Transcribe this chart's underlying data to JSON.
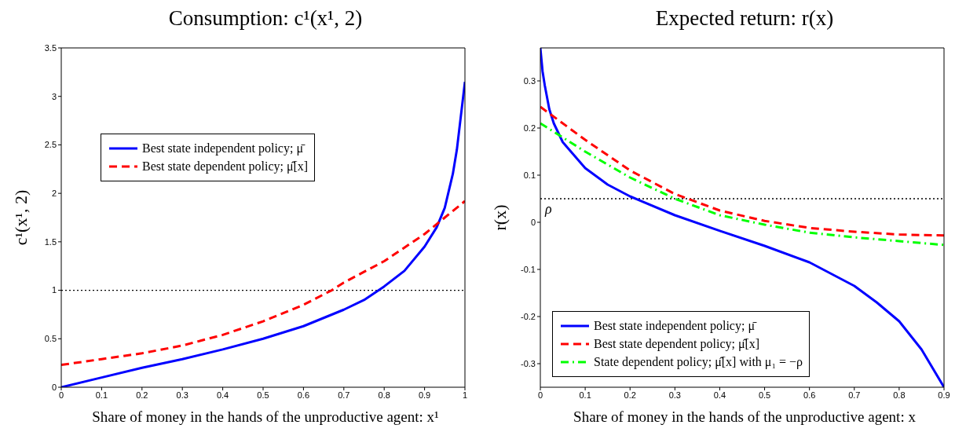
{
  "chart_data": [
    {
      "type": "line",
      "title": "Consumption: c¹(x¹, 2)",
      "xlabel": "Share of money in the hands of the unproductive agent: x¹",
      "ylabel": "c¹(x¹, 2)",
      "xlim": [
        0,
        1
      ],
      "xticks": [
        0,
        0.1,
        0.2,
        0.3,
        0.4,
        0.5,
        0.6,
        0.7,
        0.8,
        0.9,
        1
      ],
      "ylim": [
        0,
        3.5
      ],
      "yticks": [
        0,
        0.5,
        1,
        1.5,
        2,
        2.5,
        3,
        3.5
      ],
      "legend": "top left",
      "ref_lines": [
        {
          "axis": "y",
          "value": 1,
          "color": "#000000",
          "line_style": "dotted"
        }
      ],
      "series": [
        {
          "name": "Best state independent policy; μ̄",
          "color": "#0000ff",
          "line_style": "solid",
          "x": [
            0,
            0.1,
            0.2,
            0.3,
            0.4,
            0.5,
            0.6,
            0.7,
            0.75,
            0.8,
            0.85,
            0.9,
            0.93,
            0.95,
            0.97,
            0.98,
            0.99,
            1
          ],
          "values": [
            0,
            0.1,
            0.2,
            0.29,
            0.39,
            0.5,
            0.63,
            0.8,
            0.9,
            1.04,
            1.2,
            1.45,
            1.65,
            1.85,
            2.2,
            2.45,
            2.8,
            3.15
          ]
        },
        {
          "name": "Best state dependent policy; μ̂[x]",
          "color": "#ff0000",
          "line_style": "dashed",
          "x": [
            0,
            0.1,
            0.2,
            0.3,
            0.4,
            0.5,
            0.6,
            0.67,
            0.7,
            0.8,
            0.9,
            0.95,
            1
          ],
          "values": [
            0.23,
            0.29,
            0.35,
            0.43,
            0.54,
            0.68,
            0.85,
            1,
            1.08,
            1.3,
            1.58,
            1.75,
            1.92
          ]
        }
      ]
    },
    {
      "type": "line",
      "title": "Expected return: r(x)",
      "xlabel": "Share of money in the hands of the unproductive agent: x",
      "ylabel": "r(x)",
      "xlim": [
        0,
        0.9
      ],
      "xticks": [
        0,
        0.1,
        0.2,
        0.3,
        0.4,
        0.5,
        0.6,
        0.7,
        0.8,
        0.9
      ],
      "ylim": [
        -0.35,
        0.37
      ],
      "yticks": [
        -0.3,
        -0.2,
        -0.1,
        0,
        0.1,
        0.2,
        0.3
      ],
      "legend": "bottom left",
      "ref_lines": [
        {
          "axis": "y",
          "value": 0.05,
          "label": "ρ",
          "color": "#000000",
          "line_style": "dotted"
        }
      ],
      "series": [
        {
          "name": "Best state independent policy; μ̄",
          "color": "#0000ff",
          "line_style": "solid",
          "x": [
            0,
            0.005,
            0.01,
            0.02,
            0.03,
            0.05,
            0.1,
            0.15,
            0.2,
            0.3,
            0.4,
            0.5,
            0.6,
            0.7,
            0.75,
            0.8,
            0.85,
            0.9
          ],
          "values": [
            0.37,
            0.32,
            0.29,
            0.24,
            0.21,
            0.17,
            0.115,
            0.08,
            0.055,
            0.015,
            -0.018,
            -0.05,
            -0.085,
            -0.135,
            -0.17,
            -0.21,
            -0.27,
            -0.35
          ]
        },
        {
          "name": "Best state dependent policy; μ̂[x]",
          "color": "#ff0000",
          "line_style": "dashed",
          "x": [
            0,
            0.1,
            0.2,
            0.3,
            0.4,
            0.5,
            0.6,
            0.7,
            0.8,
            0.9
          ],
          "values": [
            0.245,
            0.175,
            0.11,
            0.06,
            0.025,
            0.003,
            -0.012,
            -0.02,
            -0.026,
            -0.028
          ]
        },
        {
          "name": "State dependent policy; μ̂[x] with μ₁ = −ρ",
          "color": "#00ff00",
          "line_style": "dashdot",
          "x": [
            0,
            0.1,
            0.2,
            0.3,
            0.4,
            0.5,
            0.6,
            0.7,
            0.8,
            0.9
          ],
          "values": [
            0.21,
            0.15,
            0.095,
            0.05,
            0.015,
            -0.005,
            -0.022,
            -0.032,
            -0.04,
            -0.048
          ]
        }
      ]
    }
  ]
}
